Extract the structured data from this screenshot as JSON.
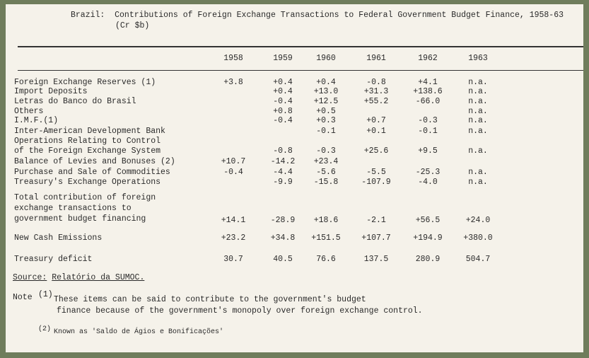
{
  "header": {
    "title": "Brazil:  Contributions of Foreign Exchange Transactions to Federal Government Budget Finance, 1958-63",
    "unit": "(Cr $b)"
  },
  "table": {
    "columns": [
      "1958",
      "1959",
      "1960",
      "1961",
      "1962",
      "1963"
    ],
    "rows": [
      {
        "label": [
          "Foreign Exchange Reserves (1)"
        ],
        "cells": [
          "+3.8",
          "+0.4",
          "+0.4",
          "-0.8",
          "+4.1",
          "n.a."
        ]
      },
      {
        "label": [
          "Import Deposits"
        ],
        "cells": [
          null,
          "+0.4",
          "+13.0",
          "+31.3",
          "+138.6",
          "n.a."
        ]
      },
      {
        "label": [
          "Letras do Banco do Brasil"
        ],
        "cells": [
          null,
          "-0.4",
          "+12.5",
          "+55.2",
          "-66.0",
          "n.a."
        ]
      },
      {
        "label": [
          "Others"
        ],
        "cells": [
          null,
          "+0.8",
          "+0.5",
          null,
          null,
          "n.a."
        ]
      },
      {
        "label": [
          "I.M.F.(1)"
        ],
        "cells": [
          null,
          "-0.4",
          "+0.3",
          "+0.7",
          "-0.3",
          "n.a."
        ]
      },
      {
        "label": [
          "Inter-American Development Bank"
        ],
        "cells": [
          null,
          null,
          "-0.1",
          "+0.1",
          "-0.1",
          "n.a."
        ]
      },
      {
        "label": [
          "Operations Relating to Control",
          "of the Foreign Exchange System"
        ],
        "cells": [
          null,
          "-0.8",
          "-0.3",
          "+25.6",
          "+9.5",
          "n.a."
        ]
      },
      {
        "label": [
          "Balance of Levies and Bonuses (2)"
        ],
        "cells": [
          "+10.7",
          "-14.2",
          "+23.4",
          null,
          null,
          null
        ]
      },
      {
        "label": [
          "Purchase and Sale of Commodities"
        ],
        "cells": [
          "-0.4",
          "-4.4",
          "-5.6",
          "-5.5",
          "-25.3",
          "n.a."
        ]
      },
      {
        "label": [
          "Treasury's Exchange Operations"
        ],
        "cells": [
          null,
          "-9.9",
          "-15.8",
          "-107.9",
          "-4.0",
          "n.a."
        ]
      },
      {
        "label": [
          "Total contribution of foreign",
          "exchange transactions to",
          "government budget financing"
        ],
        "cells": [
          "+14.1",
          "-28.9",
          "+18.6",
          "-2.1",
          "+56.5",
          "+24.0"
        ]
      },
      {
        "label": [
          "New Cash Emissions"
        ],
        "cells": [
          "+23.2",
          "+34.8",
          "+151.5",
          "+107.7",
          "+194.9",
          "+380.0"
        ]
      },
      {
        "label": [
          "Treasury deficit"
        ],
        "cells": [
          "30.7",
          "40.5",
          "76.6",
          "137.5",
          "280.9",
          "504.7"
        ]
      }
    ]
  },
  "source": {
    "label": "Source:",
    "text": "Relatório da SUMOC."
  },
  "notes": [
    {
      "label": "Note",
      "marker": "(1)",
      "lines": [
        "These items can be said to contribute to the government's budget",
        "finance because of the government's monopoly over foreign exchange control."
      ]
    },
    {
      "marker": "(2)",
      "lines": [
        "Known as 'Saldo de Ágios e Bonificações'"
      ]
    }
  ]
}
